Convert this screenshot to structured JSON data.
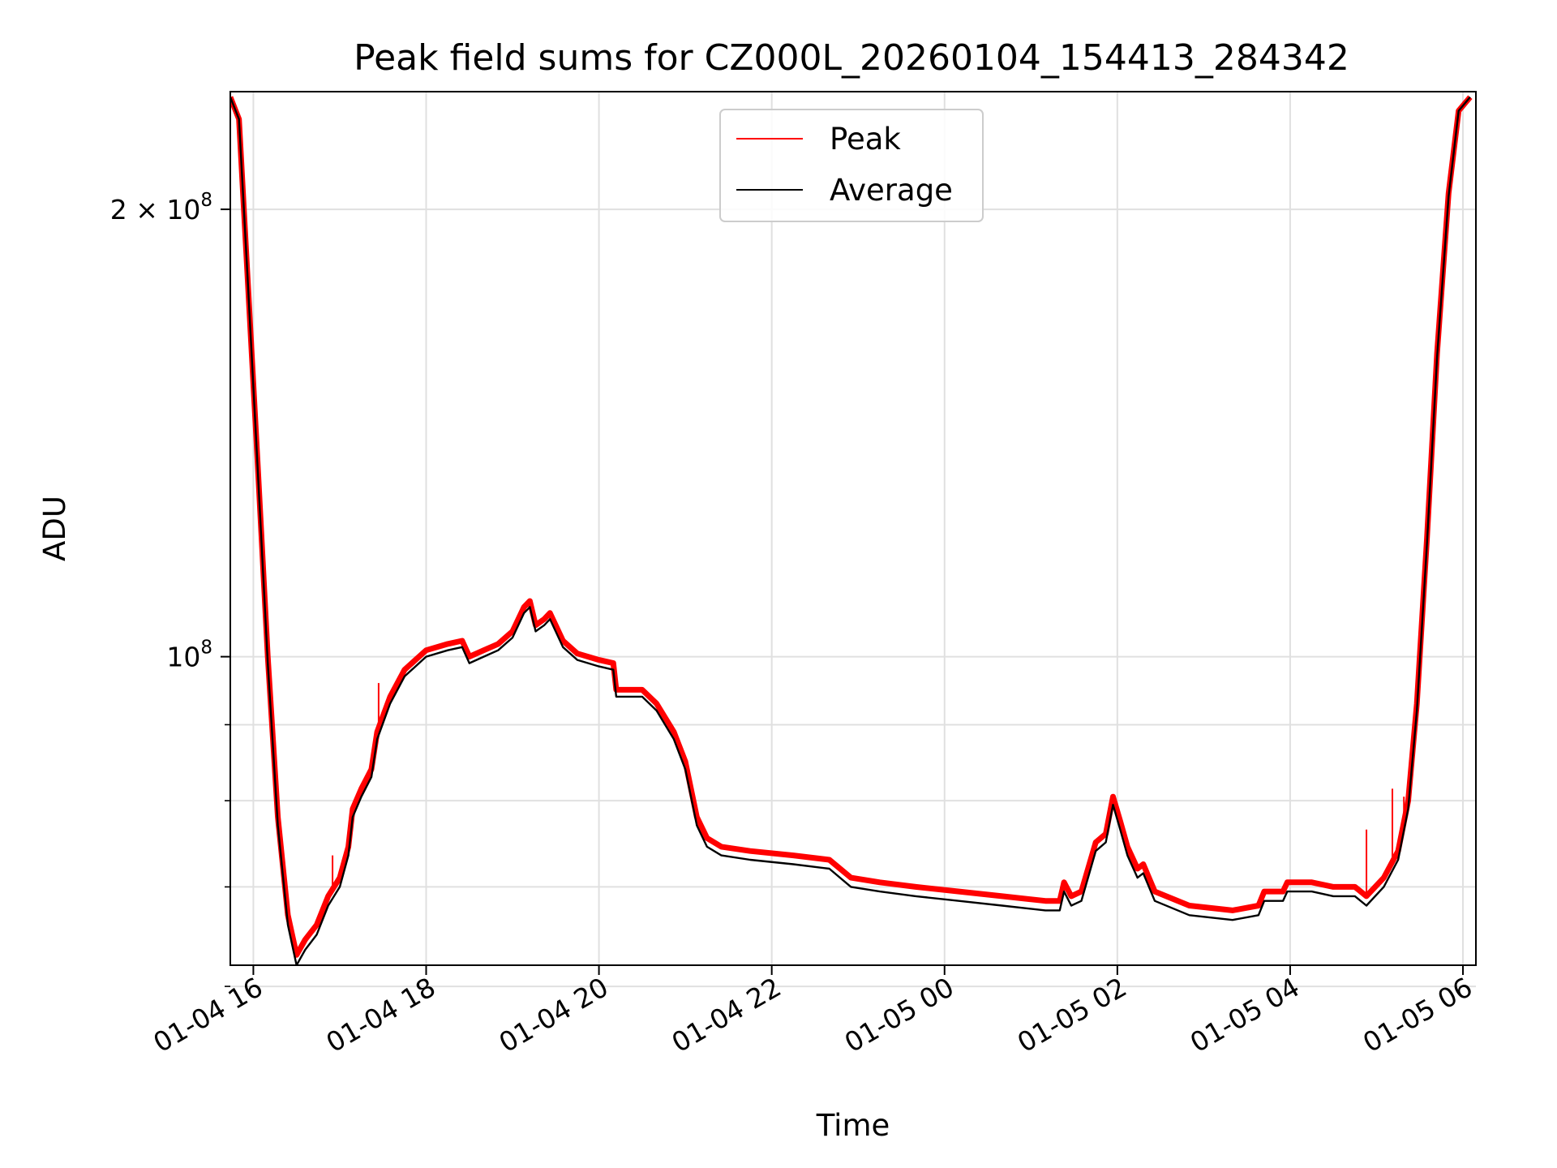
{
  "chart_data": {
    "type": "line",
    "title": "Peak field sums for CZ000L_20260104_154413_284342",
    "xlabel": "Time",
    "ylabel": "ADU",
    "y_scale": "log",
    "x_start": "01-04 15:44",
    "x_end": "01-05 06:09",
    "ylim": [
      62000000.0,
      240000000.0
    ],
    "x_ticks": [
      "01-04 16",
      "01-04 18",
      "01-04 20",
      "01-04 22",
      "01-05 00",
      "01-05 02",
      "01-05 04",
      "01-05 06"
    ],
    "y_ticks": [
      {
        "value": 200000000,
        "label": "2 × 10^8",
        "base": "2 × 10",
        "exp": "8"
      },
      {
        "value": 100000000,
        "label": "10^8",
        "base": "10",
        "exp": "8"
      }
    ],
    "y_minor_ticks": [
      60000000,
      70000000,
      80000000,
      90000000
    ],
    "grid": true,
    "legend_position": "upper center",
    "series": [
      {
        "name": "Peak",
        "color": "#ff0000",
        "points": [
          [
            "01-04 15:44",
            238000000.0
          ],
          [
            "01-04 15:50",
            230000000.0
          ],
          [
            "01-04 15:56",
            180000000.0
          ],
          [
            "01-04 16:03",
            135000000.0
          ],
          [
            "01-04 16:10",
            100000000.0
          ],
          [
            "01-04 16:17",
            78000000.0
          ],
          [
            "01-04 16:24",
            67000000.0
          ],
          [
            "01-04 16:30",
            63000000.0
          ],
          [
            "01-04 16:36",
            64500000.0
          ],
          [
            "01-04 16:44",
            66000000.0
          ],
          [
            "01-04 16:52",
            69000000.0
          ],
          [
            "01-04 17:00",
            71000000.0
          ],
          [
            "01-04 17:06",
            74500000.0
          ],
          [
            "01-04 17:09",
            79000000.0
          ],
          [
            "01-04 17:15",
            81500000.0
          ],
          [
            "01-04 17:22",
            84000000.0
          ],
          [
            "01-04 17:26",
            89000000.0
          ],
          [
            "01-04 17:35",
            94000000.0
          ],
          [
            "01-04 17:45",
            98000000.0
          ],
          [
            "01-04 18:00",
            101000000.0
          ],
          [
            "01-04 18:15",
            102000000.0
          ],
          [
            "01-04 18:25",
            102500000.0
          ],
          [
            "01-04 18:30",
            100000000.0
          ],
          [
            "01-04 18:40",
            101000000.0
          ],
          [
            "01-04 18:50",
            102000000.0
          ],
          [
            "01-04 19:00",
            104000000.0
          ],
          [
            "01-04 19:08",
            108000000.0
          ],
          [
            "01-04 19:12",
            109000000.0
          ],
          [
            "01-04 19:16",
            105000000.0
          ],
          [
            "01-04 19:22",
            106000000.0
          ],
          [
            "01-04 19:26",
            107000000.0
          ],
          [
            "01-04 19:35",
            102500000.0
          ],
          [
            "01-04 19:45",
            100500000.0
          ],
          [
            "01-04 20:00",
            99500000.0
          ],
          [
            "01-04 20:10",
            99000000.0
          ],
          [
            "01-04 20:12",
            95000000.0
          ],
          [
            "01-04 20:30",
            95000000.0
          ],
          [
            "01-04 20:40",
            93000000.0
          ],
          [
            "01-04 20:52",
            89000000.0
          ],
          [
            "01-04 21:00",
            85000000.0
          ],
          [
            "01-04 21:08",
            78000000.0
          ],
          [
            "01-04 21:15",
            75500000.0
          ],
          [
            "01-04 21:25",
            74500000.0
          ],
          [
            "01-04 21:45",
            74000000.0
          ],
          [
            "01-04 22:15",
            73500000.0
          ],
          [
            "01-04 22:40",
            73000000.0
          ],
          [
            "01-04 22:55",
            71000000.0
          ],
          [
            "01-04 23:15",
            70500000.0
          ],
          [
            "01-04 23:40",
            70000000.0
          ],
          [
            "01-05 00:10",
            69500000.0
          ],
          [
            "01-05 00:40",
            69000000.0
          ],
          [
            "01-05 01:10",
            68500000.0
          ],
          [
            "01-05 01:20",
            68500000.0
          ],
          [
            "01-05 01:23",
            70500000.0
          ],
          [
            "01-05 01:28",
            69000000.0
          ],
          [
            "01-05 01:35",
            69500000.0
          ],
          [
            "01-05 01:45",
            75000000.0
          ],
          [
            "01-05 01:52",
            76000000.0
          ],
          [
            "01-05 01:57",
            80500000.0
          ],
          [
            "01-05 02:02",
            77500000.0
          ],
          [
            "01-05 02:07",
            74500000.0
          ],
          [
            "01-05 02:14",
            72000000.0
          ],
          [
            "01-05 02:18",
            72500000.0
          ],
          [
            "01-05 02:26",
            69500000.0
          ],
          [
            "01-05 02:50",
            68000000.0
          ],
          [
            "01-05 03:20",
            67500000.0
          ],
          [
            "01-05 03:38",
            68000000.0
          ],
          [
            "01-05 03:42",
            69500000.0
          ],
          [
            "01-05 03:55",
            69500000.0
          ],
          [
            "01-05 03:58",
            70500000.0
          ],
          [
            "01-05 04:15",
            70500000.0
          ],
          [
            "01-05 04:30",
            70000000.0
          ],
          [
            "01-05 04:45",
            70000000.0
          ],
          [
            "01-05 04:53",
            69000000.0
          ],
          [
            "01-05 05:05",
            71000000.0
          ],
          [
            "01-05 05:15",
            74000000.0
          ],
          [
            "01-05 05:22",
            80000000.0
          ],
          [
            "01-05 05:28",
            93000000.0
          ],
          [
            "01-05 05:35",
            120000000.0
          ],
          [
            "01-05 05:42",
            160000000.0
          ],
          [
            "01-05 05:50",
            205000000.0
          ],
          [
            "01-05 05:57",
            233000000.0
          ],
          [
            "01-05 06:05",
            238000000.0
          ]
        ]
      },
      {
        "name": "Average",
        "color": "#000000",
        "points": [
          [
            "01-04 15:44",
            238000000.0
          ],
          [
            "01-04 15:50",
            230000000.0
          ],
          [
            "01-04 15:56",
            180000000.0
          ],
          [
            "01-04 16:03",
            134000000.0
          ],
          [
            "01-04 16:10",
            99000000.0
          ],
          [
            "01-04 16:17",
            77000000.0
          ],
          [
            "01-04 16:24",
            66000000.0
          ],
          [
            "01-04 16:30",
            62000000.0
          ],
          [
            "01-04 16:36",
            63500000.0
          ],
          [
            "01-04 16:44",
            65000000.0
          ],
          [
            "01-04 16:52",
            68000000.0
          ],
          [
            "01-04 17:00",
            70000000.0
          ],
          [
            "01-04 17:06",
            73500000.0
          ],
          [
            "01-04 17:09",
            78000000.0
          ],
          [
            "01-04 17:15",
            80500000.0
          ],
          [
            "01-04 17:22",
            83000000.0
          ],
          [
            "01-04 17:26",
            88000000.0
          ],
          [
            "01-04 17:35",
            93000000.0
          ],
          [
            "01-04 17:45",
            97000000.0
          ],
          [
            "01-04 18:00",
            100000000.0
          ],
          [
            "01-04 18:15",
            101000000.0
          ],
          [
            "01-04 18:25",
            101500000.0
          ],
          [
            "01-04 18:30",
            99000000.0
          ],
          [
            "01-04 18:40",
            100000000.0
          ],
          [
            "01-04 18:50",
            101000000.0
          ],
          [
            "01-04 19:00",
            103000000.0
          ],
          [
            "01-04 19:08",
            107000000.0
          ],
          [
            "01-04 19:12",
            108000000.0
          ],
          [
            "01-04 19:16",
            104000000.0
          ],
          [
            "01-04 19:22",
            105000000.0
          ],
          [
            "01-04 19:26",
            106000000.0
          ],
          [
            "01-04 19:35",
            101500000.0
          ],
          [
            "01-04 19:45",
            99500000.0
          ],
          [
            "01-04 20:00",
            98500000.0
          ],
          [
            "01-04 20:10",
            98000000.0
          ],
          [
            "01-04 20:12",
            94000000.0
          ],
          [
            "01-04 20:30",
            94000000.0
          ],
          [
            "01-04 20:40",
            92000000.0
          ],
          [
            "01-04 20:52",
            88000000.0
          ],
          [
            "01-04 21:00",
            84000000.0
          ],
          [
            "01-04 21:08",
            77000000.0
          ],
          [
            "01-04 21:15",
            74500000.0
          ],
          [
            "01-04 21:25",
            73500000.0
          ],
          [
            "01-04 21:45",
            73000000.0
          ],
          [
            "01-04 22:15",
            72500000.0
          ],
          [
            "01-04 22:40",
            72000000.0
          ],
          [
            "01-04 22:55",
            70000000.0
          ],
          [
            "01-04 23:15",
            69500000.0
          ],
          [
            "01-04 23:40",
            69000000.0
          ],
          [
            "01-05 00:10",
            68500000.0
          ],
          [
            "01-05 00:40",
            68000000.0
          ],
          [
            "01-05 01:10",
            67500000.0
          ],
          [
            "01-05 01:20",
            67500000.0
          ],
          [
            "01-05 01:23",
            69500000.0
          ],
          [
            "01-05 01:28",
            68000000.0
          ],
          [
            "01-05 01:35",
            68500000.0
          ],
          [
            "01-05 01:45",
            74000000.0
          ],
          [
            "01-05 01:52",
            75000000.0
          ],
          [
            "01-05 01:57",
            79500000.0
          ],
          [
            "01-05 02:02",
            76500000.0
          ],
          [
            "01-05 02:07",
            73500000.0
          ],
          [
            "01-05 02:14",
            71000000.0
          ],
          [
            "01-05 02:18",
            71500000.0
          ],
          [
            "01-05 02:26",
            68500000.0
          ],
          [
            "01-05 02:50",
            67000000.0
          ],
          [
            "01-05 03:20",
            66500000.0
          ],
          [
            "01-05 03:38",
            67000000.0
          ],
          [
            "01-05 03:42",
            68500000.0
          ],
          [
            "01-05 03:55",
            68500000.0
          ],
          [
            "01-05 03:58",
            69500000.0
          ],
          [
            "01-05 04:15",
            69500000.0
          ],
          [
            "01-05 04:30",
            69000000.0
          ],
          [
            "01-05 04:45",
            69000000.0
          ],
          [
            "01-05 04:53",
            68000000.0
          ],
          [
            "01-05 05:05",
            70000000.0
          ],
          [
            "01-05 05:15",
            73000000.0
          ],
          [
            "01-05 05:22",
            79000000.0
          ],
          [
            "01-05 05:28",
            92000000.0
          ],
          [
            "01-05 05:35",
            119000000.0
          ],
          [
            "01-05 05:42",
            159000000.0
          ],
          [
            "01-05 05:50",
            204000000.0
          ],
          [
            "01-05 05:57",
            233000000.0
          ],
          [
            "01-05 06:05",
            238000000.0
          ]
        ]
      }
    ],
    "spikes": [
      {
        "series": "Peak",
        "time": "01-04 16:55",
        "value": 73500000.0
      },
      {
        "series": "Peak",
        "time": "01-04 17:27",
        "value": 96000000.0
      },
      {
        "series": "Peak",
        "time": "01-05 04:53",
        "value": 76500000.0
      },
      {
        "series": "Peak",
        "time": "01-05 05:11",
        "value": 81500000.0
      },
      {
        "series": "Peak",
        "time": "01-05 05:19",
        "value": 80500000.0
      }
    ]
  }
}
